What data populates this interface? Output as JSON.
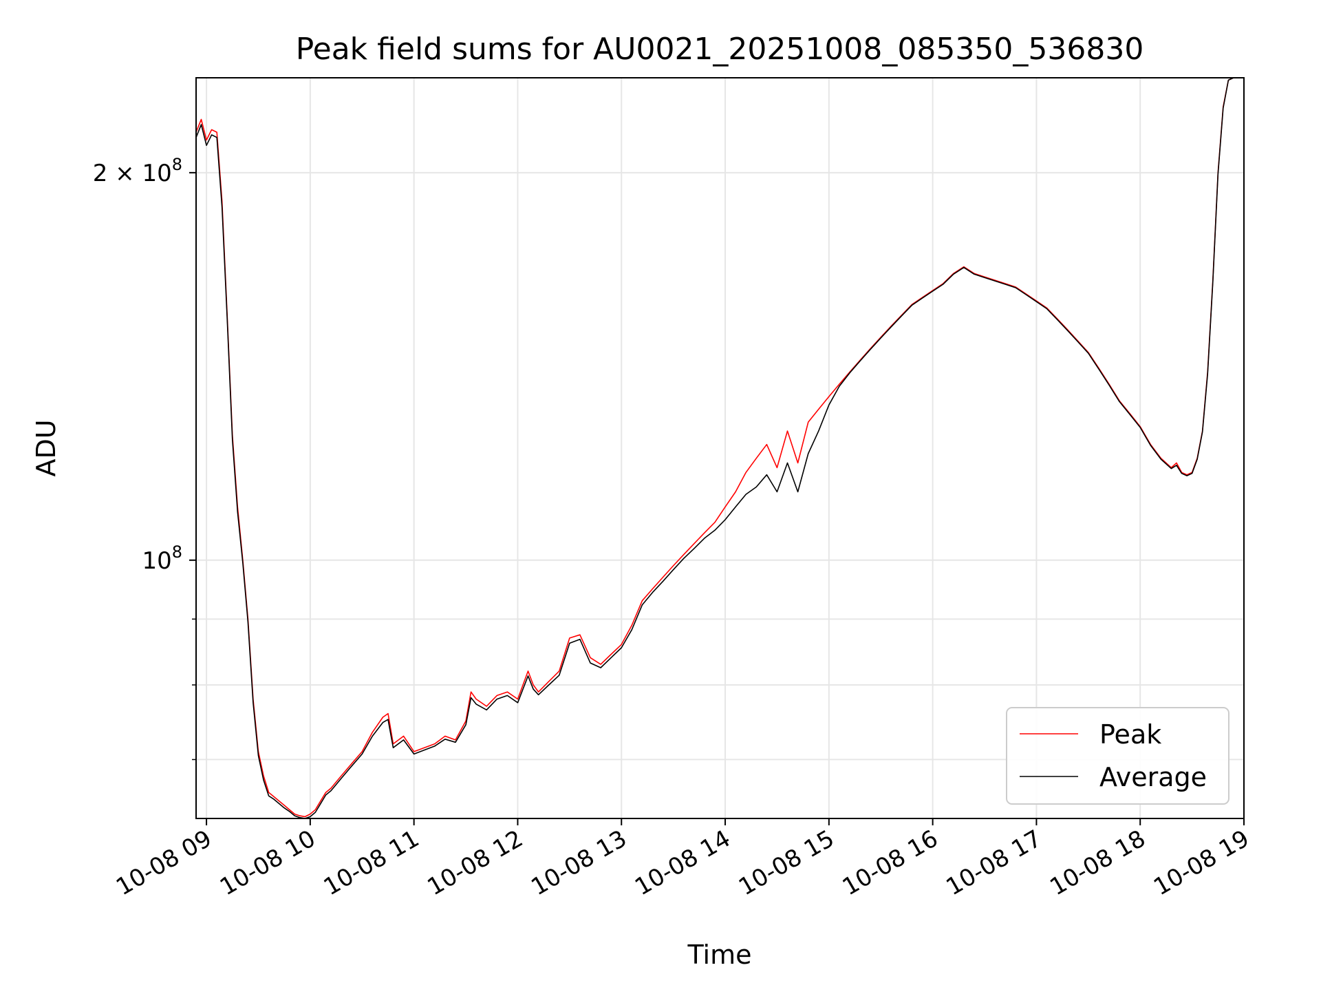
{
  "chart_data": {
    "type": "line",
    "title": "Peak field sums for AU0021_20251008_085350_536830",
    "xlabel": "Time",
    "ylabel": "ADU",
    "yscale": "log",
    "xlim": [
      8.9,
      19.0
    ],
    "ylim": [
      63000000,
      237000000
    ],
    "x_tick_values": [
      9,
      10,
      11,
      12,
      13,
      14,
      15,
      16,
      17,
      18,
      19
    ],
    "x_tick_labels": [
      "10-08 09",
      "10-08 10",
      "10-08 11",
      "10-08 12",
      "10-08 13",
      "10-08 14",
      "10-08 15",
      "10-08 16",
      "10-08 17",
      "10-08 18",
      "10-08 19"
    ],
    "y_major_ticks": [
      {
        "value": 100000000,
        "base": "10",
        "exp": "8"
      },
      {
        "value": 200000000,
        "base": "2 × 10",
        "exp": "8"
      }
    ],
    "y_minor_ticks": [
      70000000,
      80000000,
      90000000
    ],
    "grid": true,
    "legend": {
      "position": "lower-right"
    },
    "series": [
      {
        "name": "Peak",
        "color": "#ff0000",
        "x": [
          8.9,
          8.95,
          9.0,
          9.05,
          9.1,
          9.15,
          9.2,
          9.25,
          9.3,
          9.35,
          9.4,
          9.45,
          9.5,
          9.55,
          9.6,
          9.65,
          9.7,
          9.75,
          9.8,
          9.85,
          9.9,
          9.95,
          10.0,
          10.05,
          10.1,
          10.15,
          10.2,
          10.3,
          10.4,
          10.5,
          10.6,
          10.7,
          10.75,
          10.8,
          10.9,
          11.0,
          11.1,
          11.2,
          11.3,
          11.4,
          11.5,
          11.55,
          11.6,
          11.7,
          11.8,
          11.9,
          12.0,
          12.1,
          12.15,
          12.2,
          12.3,
          12.4,
          12.5,
          12.6,
          12.7,
          12.8,
          12.9,
          13.0,
          13.1,
          13.2,
          13.3,
          13.4,
          13.5,
          13.6,
          13.7,
          13.8,
          13.9,
          14.0,
          14.1,
          14.2,
          14.3,
          14.4,
          14.5,
          14.6,
          14.7,
          14.8,
          14.9,
          15.0,
          15.1,
          15.2,
          15.3,
          15.4,
          15.5,
          15.6,
          15.7,
          15.8,
          15.9,
          16.0,
          16.1,
          16.2,
          16.3,
          16.4,
          16.5,
          16.6,
          16.7,
          16.8,
          16.9,
          17.0,
          17.1,
          17.2,
          17.3,
          17.4,
          17.5,
          17.6,
          17.7,
          17.8,
          17.9,
          18.0,
          18.1,
          18.2,
          18.3,
          18.35,
          18.4,
          18.45,
          18.5,
          18.55,
          18.6,
          18.65,
          18.7,
          18.75,
          18.8,
          18.85,
          18.9,
          18.95,
          19.0
        ],
        "y": [
          215000000,
          220000000,
          212000000,
          216000000,
          215000000,
          190000000,
          155000000,
          125000000,
          110000000,
          100000000,
          90000000,
          78000000,
          71000000,
          68000000,
          66000000,
          65500000,
          65000000,
          64500000,
          64000000,
          63500000,
          63300000,
          63200000,
          63500000,
          64000000,
          65000000,
          66000000,
          66500000,
          68000000,
          69500000,
          71000000,
          73500000,
          75500000,
          76000000,
          72000000,
          73000000,
          71000000,
          71500000,
          72000000,
          73000000,
          72500000,
          75000000,
          79000000,
          78000000,
          77000000,
          78500000,
          79000000,
          78000000,
          82000000,
          80000000,
          79000000,
          80500000,
          82000000,
          87000000,
          87500000,
          84000000,
          83000000,
          84500000,
          86000000,
          89000000,
          93000000,
          95000000,
          97000000,
          99000000,
          101000000,
          103000000,
          105000000,
          107000000,
          110000000,
          113000000,
          117000000,
          120000000,
          123000000,
          118000000,
          126000000,
          119000000,
          128000000,
          131000000,
          134000000,
          137000000,
          140000000,
          143000000,
          146000000,
          149000000,
          152000000,
          155000000,
          158000000,
          160000000,
          162000000,
          164000000,
          167000000,
          169000000,
          167000000,
          166000000,
          165000000,
          164000000,
          163000000,
          161000000,
          159000000,
          157000000,
          154000000,
          151000000,
          148000000,
          145000000,
          141000000,
          137000000,
          133000000,
          130000000,
          127000000,
          123000000,
          120000000,
          118000000,
          119000000,
          117000000,
          116500000,
          117000000,
          120000000,
          126000000,
          140000000,
          165000000,
          200000000,
          225000000,
          236000000,
          237000000,
          237000000,
          237000000
        ]
      },
      {
        "name": "Average",
        "color": "#000000",
        "x": [
          8.9,
          8.95,
          9.0,
          9.05,
          9.1,
          9.15,
          9.2,
          9.25,
          9.3,
          9.35,
          9.4,
          9.45,
          9.5,
          9.55,
          9.6,
          9.65,
          9.7,
          9.75,
          9.8,
          9.85,
          9.9,
          9.95,
          10.0,
          10.05,
          10.1,
          10.15,
          10.2,
          10.3,
          10.4,
          10.5,
          10.6,
          10.7,
          10.75,
          10.8,
          10.9,
          11.0,
          11.1,
          11.2,
          11.3,
          11.4,
          11.5,
          11.55,
          11.6,
          11.7,
          11.8,
          11.9,
          12.0,
          12.1,
          12.15,
          12.2,
          12.3,
          12.4,
          12.5,
          12.6,
          12.7,
          12.8,
          12.9,
          13.0,
          13.1,
          13.2,
          13.3,
          13.4,
          13.5,
          13.6,
          13.7,
          13.8,
          13.9,
          14.0,
          14.1,
          14.2,
          14.3,
          14.4,
          14.5,
          14.6,
          14.7,
          14.8,
          14.9,
          15.0,
          15.1,
          15.2,
          15.3,
          15.4,
          15.5,
          15.6,
          15.7,
          15.8,
          15.9,
          16.0,
          16.1,
          16.2,
          16.3,
          16.4,
          16.5,
          16.6,
          16.7,
          16.8,
          16.9,
          17.0,
          17.1,
          17.2,
          17.3,
          17.4,
          17.5,
          17.6,
          17.7,
          17.8,
          17.9,
          18.0,
          18.1,
          18.2,
          18.3,
          18.35,
          18.4,
          18.45,
          18.5,
          18.55,
          18.6,
          18.65,
          18.7,
          18.75,
          18.8,
          18.85,
          18.9,
          18.95,
          19.0
        ],
        "y": [
          213000000,
          218000000,
          210000000,
          214000000,
          213000000,
          188000000,
          154000000,
          124000000,
          109000000,
          99500000,
          89500000,
          77500000,
          70500000,
          67500000,
          65600000,
          65200000,
          64700000,
          64200000,
          63800000,
          63300000,
          63100000,
          63000000,
          63200000,
          63700000,
          64700000,
          65700000,
          66200000,
          67700000,
          69200000,
          70700000,
          73000000,
          74800000,
          75200000,
          71500000,
          72500000,
          70700000,
          71200000,
          71700000,
          72600000,
          72200000,
          74500000,
          78200000,
          77300000,
          76500000,
          78000000,
          78500000,
          77500000,
          81300000,
          79400000,
          78600000,
          80000000,
          81400000,
          86200000,
          86800000,
          83200000,
          82500000,
          84000000,
          85500000,
          88300000,
          92300000,
          94400000,
          96300000,
          98300000,
          100300000,
          102100000,
          104000000,
          105500000,
          107500000,
          110000000,
          112500000,
          114000000,
          116500000,
          113000000,
          119000000,
          113000000,
          121000000,
          126000000,
          132000000,
          136500000,
          139800000,
          142800000,
          145800000,
          148800000,
          151800000,
          154800000,
          157800000,
          159800000,
          161800000,
          163800000,
          166800000,
          168800000,
          166800000,
          165800000,
          164800000,
          163800000,
          162800000,
          160800000,
          158800000,
          156800000,
          153800000,
          150800000,
          147800000,
          144800000,
          140800000,
          136800000,
          132800000,
          129800000,
          126800000,
          122800000,
          119800000,
          117800000,
          118500000,
          116800000,
          116300000,
          116800000,
          119800000,
          125800000,
          139500000,
          164500000,
          199500000,
          224500000,
          236000000,
          237000000,
          237000000,
          237000000
        ]
      }
    ]
  }
}
